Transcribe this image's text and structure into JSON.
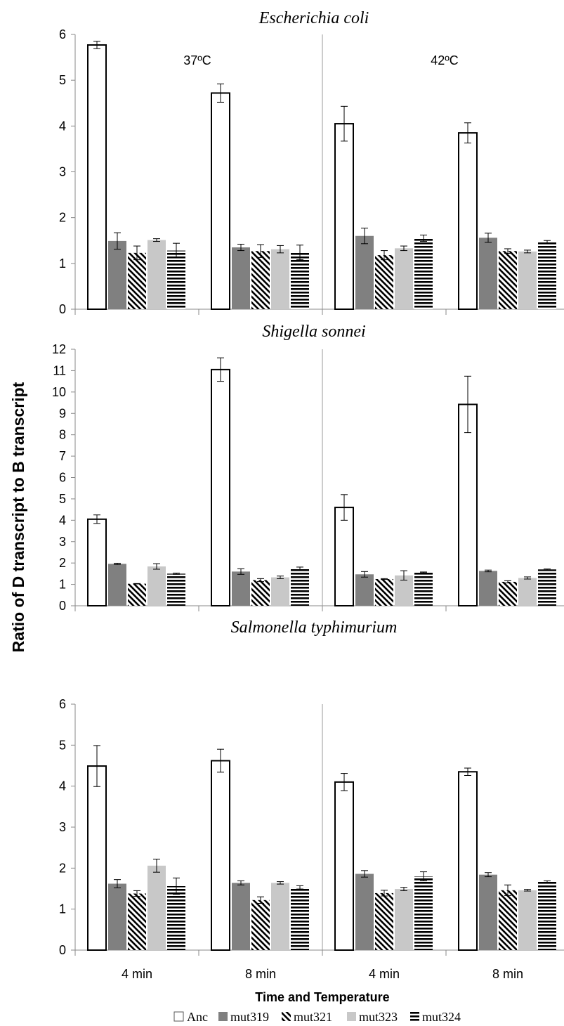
{
  "figure": {
    "ylabel": "Ratio of D transcript to B transcript",
    "xlabel": "Time and Temperature",
    "temperatures": [
      "37ºC",
      "42ºC"
    ],
    "x_ticks": [
      "4 min",
      "8 min",
      "4 min",
      "8 min"
    ],
    "legend": [
      "Anc",
      "mut319",
      "mut321",
      "mut323",
      "mut324"
    ]
  },
  "series_styles": [
    {
      "name": "Anc",
      "fill": "#ffffff",
      "pattern": "none"
    },
    {
      "name": "mut319",
      "fill": "#808080",
      "pattern": "none"
    },
    {
      "name": "mut321",
      "fill": "#ffffff",
      "pattern": "diagonal-stripes"
    },
    {
      "name": "mut323",
      "fill": "#c8c8c8",
      "pattern": "none"
    },
    {
      "name": "mut324",
      "fill": "#ffffff",
      "pattern": "horizontal-stripes"
    }
  ],
  "chart_data": [
    {
      "type": "bar",
      "title": "Escherichia coli",
      "title_style": "italic",
      "categories": [
        "4 min",
        "8 min",
        "4 min",
        "8 min"
      ],
      "groups": [
        "37ºC",
        "37ºC",
        "42ºC",
        "42ºC"
      ],
      "ylim": [
        0,
        6
      ],
      "yticks": [
        0,
        1,
        2,
        3,
        4,
        5,
        6
      ],
      "grid": false,
      "series": [
        {
          "name": "Anc",
          "values": [
            5.77,
            4.72,
            4.05,
            3.85
          ],
          "errors": [
            0.08,
            0.2,
            0.38,
            0.22
          ]
        },
        {
          "name": "mut319",
          "values": [
            1.49,
            1.35,
            1.6,
            1.56
          ],
          "errors": [
            0.18,
            0.07,
            0.17,
            0.1
          ]
        },
        {
          "name": "mut321",
          "values": [
            1.23,
            1.27,
            1.18,
            1.27
          ],
          "errors": [
            0.15,
            0.14,
            0.1,
            0.05
          ]
        },
        {
          "name": "mut323",
          "values": [
            1.51,
            1.31,
            1.33,
            1.26
          ],
          "errors": [
            0.03,
            0.08,
            0.05,
            0.03
          ]
        },
        {
          "name": "mut324",
          "values": [
            1.28,
            1.24,
            1.55,
            1.47
          ],
          "errors": [
            0.16,
            0.16,
            0.07,
            0.03
          ]
        }
      ]
    },
    {
      "type": "bar",
      "title": "Shigella sonnei",
      "title_style": "italic",
      "categories": [
        "4 min",
        "8 min",
        "4 min",
        "8 min"
      ],
      "groups": [
        "37ºC",
        "37ºC",
        "42ºC",
        "42ºC"
      ],
      "ylim": [
        0,
        12
      ],
      "yticks": [
        0,
        1,
        2,
        3,
        4,
        5,
        6,
        7,
        8,
        9,
        10,
        11,
        12
      ],
      "grid": false,
      "series": [
        {
          "name": "Anc",
          "values": [
            4.05,
            11.05,
            4.6,
            9.42
          ],
          "errors": [
            0.2,
            0.55,
            0.6,
            1.32
          ]
        },
        {
          "name": "mut319",
          "values": [
            1.96,
            1.6,
            1.47,
            1.63
          ],
          "errors": [
            0.03,
            0.13,
            0.13,
            0.04
          ]
        },
        {
          "name": "mut321",
          "values": [
            1.03,
            1.2,
            1.25,
            1.12
          ],
          "errors": [
            0.01,
            0.07,
            0.02,
            0.05
          ]
        },
        {
          "name": "mut323",
          "values": [
            1.84,
            1.33,
            1.42,
            1.3
          ],
          "errors": [
            0.13,
            0.06,
            0.22,
            0.05
          ]
        },
        {
          "name": "mut324",
          "values": [
            1.5,
            1.75,
            1.56,
            1.7
          ],
          "errors": [
            0.03,
            0.06,
            0.02,
            0.02
          ]
        }
      ]
    },
    {
      "type": "bar",
      "title": "Salmonella typhimurium",
      "title_style": "italic",
      "categories": [
        "4 min",
        "8 min",
        "4 min",
        "8 min"
      ],
      "groups": [
        "37ºC",
        "37ºC",
        "42ºC",
        "42ºC"
      ],
      "ylim": [
        0,
        6
      ],
      "yticks": [
        0,
        1,
        2,
        3,
        4,
        5,
        6
      ],
      "grid": false,
      "series": [
        {
          "name": "Anc",
          "values": [
            4.49,
            4.62,
            4.1,
            4.35
          ],
          "errors": [
            0.5,
            0.28,
            0.21,
            0.09
          ]
        },
        {
          "name": "mut319",
          "values": [
            1.62,
            1.64,
            1.86,
            1.84
          ],
          "errors": [
            0.1,
            0.05,
            0.08,
            0.05
          ]
        },
        {
          "name": "mut321",
          "values": [
            1.38,
            1.22,
            1.39,
            1.46
          ],
          "errors": [
            0.07,
            0.08,
            0.07,
            0.13
          ]
        },
        {
          "name": "mut323",
          "values": [
            2.06,
            1.64,
            1.49,
            1.46
          ],
          "errors": [
            0.16,
            0.03,
            0.04,
            0.02
          ]
        },
        {
          "name": "mut324",
          "values": [
            1.56,
            1.53,
            1.8,
            1.67
          ],
          "errors": [
            0.2,
            0.04,
            0.11,
            0.02
          ]
        }
      ]
    }
  ]
}
